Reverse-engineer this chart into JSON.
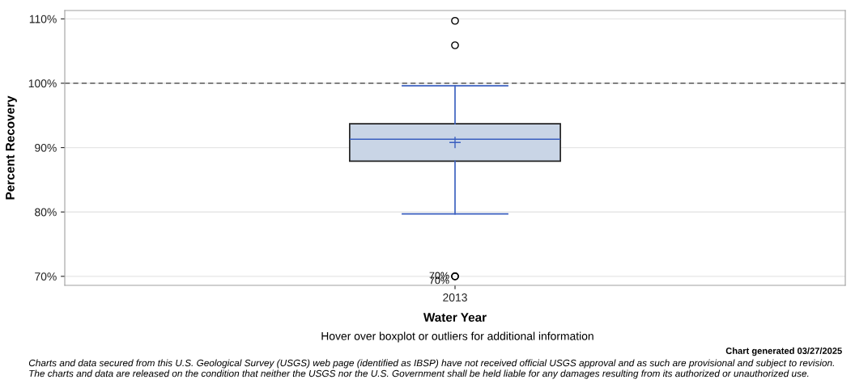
{
  "chart_data": {
    "type": "box",
    "xlabel": "Water Year",
    "ylabel": "Percent Recovery",
    "categories": [
      "2013"
    ],
    "boxes": [
      {
        "low": 79.7,
        "q1": 87.9,
        "median": 91.3,
        "q3": 93.7,
        "high": 99.6,
        "mean": 90.8,
        "outliers": [
          109.7,
          105.9,
          70,
          70
        ]
      }
    ],
    "color": "#c9d5e6",
    "ylim": [
      68.6,
      111.3
    ],
    "yticks": [
      {
        "value": 70,
        "label": "70%"
      },
      {
        "value": 80,
        "label": "80%"
      },
      {
        "value": 90,
        "label": "90%"
      },
      {
        "value": 100,
        "label": "100%"
      },
      {
        "value": 110,
        "label": "110%"
      }
    ],
    "grid": "y",
    "legend": false,
    "ref_lines": [
      {
        "axis": "y",
        "value": 100,
        "label": null,
        "color": "#808080",
        "line_style": "dashed"
      }
    ],
    "annotations": [
      "70%",
      "70%",
      "Hover over boxplot or outliers for additional information",
      "Chart generated 03/27/2025",
      "Charts and data secured from this U.S. Geological Survey (USGS) web page (identified as IBSP) have not received official USGS approval and as such are provisional and subject to revision.",
      "The charts and data are released on the condition that neither the USGS nor the U.S. Government shall be held liable for any damages resulting from its authorized or unauthorized use."
    ]
  }
}
